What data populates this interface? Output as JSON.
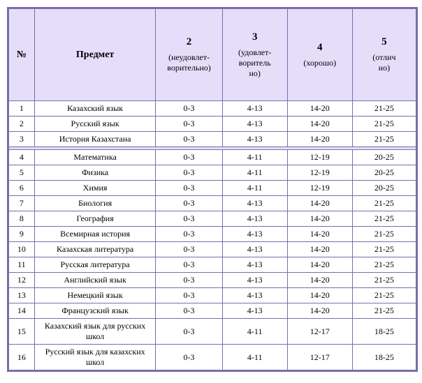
{
  "table": {
    "header": {
      "num": "№",
      "subject": "Предмет",
      "grades": [
        {
          "num": "2",
          "label": "(неудовлет-<br>ворительно)"
        },
        {
          "num": "3",
          "label": "(удовлет-<br>воритель<br>но)"
        },
        {
          "num": "4",
          "label": "(хорошо)"
        },
        {
          "num": "5",
          "label": "(отлич<br>но)"
        }
      ]
    },
    "rows": [
      {
        "n": "1",
        "subject": "Казахский язык",
        "g2": "0-3",
        "g3": "4-13",
        "g4": "14-20",
        "g5": "21-25"
      },
      {
        "n": "2",
        "subject": "Русский язык",
        "g2": "0-3",
        "g3": "4-13",
        "g4": "14-20",
        "g5": "21-25"
      },
      {
        "n": "3",
        "subject": "История Казахстана",
        "g2": "0-3",
        "g3": "4-13",
        "g4": "14-20",
        "g5": "21-25"
      },
      {
        "spacer": true
      },
      {
        "n": "4",
        "subject": "Математика",
        "g2": "0-3",
        "g3": "4-11",
        "g4": "12-19",
        "g5": "20-25"
      },
      {
        "n": "5",
        "subject": "Физика",
        "g2": "0-3",
        "g3": "4-11",
        "g4": "12-19",
        "g5": "20-25"
      },
      {
        "n": "6",
        "subject": "Химия",
        "g2": "0-3",
        "g3": "4-11",
        "g4": "12-19",
        "g5": "20-25"
      },
      {
        "n": "7",
        "subject": "Биология",
        "g2": "0-3",
        "g3": "4-13",
        "g4": "14-20",
        "g5": "21-25"
      },
      {
        "n": "8",
        "subject": "География",
        "g2": "0-3",
        "g3": "4-13",
        "g4": "14-20",
        "g5": "21-25"
      },
      {
        "n": "9",
        "subject": "Всемирная история",
        "g2": "0-3",
        "g3": "4-13",
        "g4": "14-20",
        "g5": "21-25"
      },
      {
        "n": "10",
        "subject": "Казахская литература",
        "g2": "0-3",
        "g3": "4-13",
        "g4": "14-20",
        "g5": "21-25"
      },
      {
        "n": "11",
        "subject": "Русская литература",
        "g2": "0-3",
        "g3": "4-13",
        "g4": "14-20",
        "g5": "21-25"
      },
      {
        "n": "12",
        "subject": "Английский язык",
        "g2": "0-3",
        "g3": "4-13",
        "g4": "14-20",
        "g5": "21-25"
      },
      {
        "n": "13",
        "subject": "Немецкий язык",
        "g2": "0-3",
        "g3": "4-13",
        "g4": "14-20",
        "g5": "21-25"
      },
      {
        "n": "14",
        "subject": "Французский язык",
        "g2": "0-3",
        "g3": "4-13",
        "g4": "14-20",
        "g5": "21-25"
      },
      {
        "n": "15",
        "subject": "Казахский язык для русских школ",
        "g2": "0-3",
        "g3": "4-11",
        "g4": "12-17",
        "g5": "18-25"
      },
      {
        "n": "16",
        "subject": "Русский язык для казахских школ",
        "g2": "0-3",
        "g3": "4-11",
        "g4": "12-17",
        "g5": "18-25"
      }
    ],
    "colors": {
      "border": "#7b6ca8",
      "header_bg": "#e5defa",
      "row_bg": "#ffffff"
    }
  }
}
